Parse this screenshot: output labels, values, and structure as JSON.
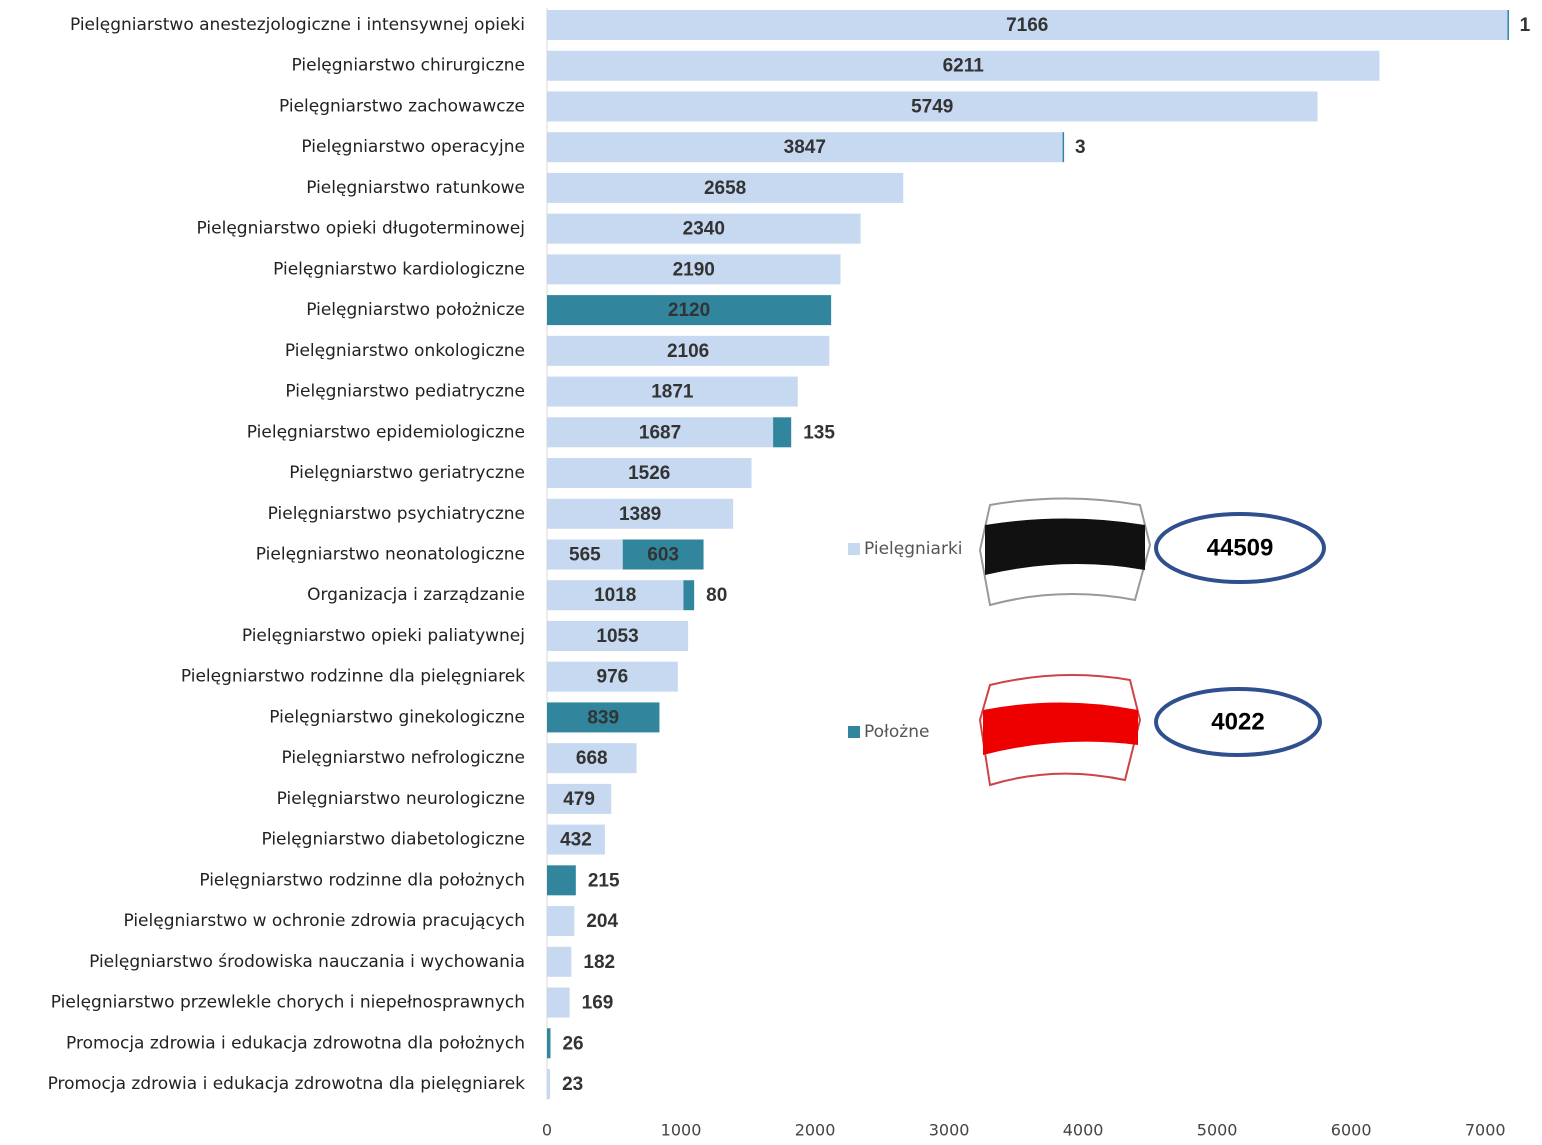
{
  "chart_data": {
    "type": "stacked-barh",
    "categories": [
      "Pielęgniarstwo anestezjologiczne i intensywnej opieki",
      "Pielęgniarstwo chirurgiczne",
      "Pielęgniarstwo zachowawcze",
      "Pielęgniarstwo operacyjne",
      "Pielęgniarstwo ratunkowe",
      "Pielęgniarstwo opieki długoterminowej",
      "Pielęgniarstwo kardiologiczne",
      "Pielęgniarstwo położnicze",
      "Pielęgniarstwo onkologiczne",
      "Pielęgniarstwo pediatryczne",
      "Pielęgniarstwo epidemiologiczne",
      "Pielęgniarstwo geriatryczne",
      "Pielęgniarstwo psychiatryczne",
      "Pielęgniarstwo neonatologiczne",
      "Organizacja i zarządzanie",
      "Pielęgniarstwo opieki paliatywnej",
      "Pielęgniarstwo rodzinne dla pielęgniarek",
      "Pielęgniarstwo ginekologiczne",
      "Pielęgniarstwo nefrologiczne",
      "Pielęgniarstwo neurologiczne",
      "Pielęgniarstwo diabetologiczne",
      "Pielęgniarstwo rodzinne dla położnych",
      "Pielęgniarstwo w ochronie zdrowia pracujących",
      "Pielęgniarstwo środowiska nauczania i wychowania",
      "Pielęgniarstwo przewlekle chorych i niepełnosprawnych",
      "Promocja zdrowia i edukacja zdrowotna dla położnych",
      "Promocja zdrowia i edukacja zdrowotna dla pielęgniarek"
    ],
    "series": [
      {
        "name": "Pielęgniarki",
        "color": "#c6d9f1",
        "total": 44509,
        "values": [
          7166,
          6211,
          5749,
          3847,
          2658,
          2340,
          2190,
          null,
          2106,
          1871,
          1687,
          1526,
          1389,
          565,
          1018,
          1053,
          976,
          null,
          668,
          479,
          432,
          null,
          204,
          182,
          169,
          null,
          23
        ]
      },
      {
        "name": "Położne",
        "color": "#31859c",
        "total": 4022,
        "values": [
          1,
          null,
          null,
          3,
          null,
          null,
          null,
          2120,
          null,
          null,
          135,
          null,
          null,
          603,
          80,
          null,
          null,
          839,
          null,
          null,
          null,
          215,
          null,
          null,
          null,
          26,
          null
        ]
      }
    ],
    "xlim": [
      0,
      7200
    ],
    "xticks": [
      0,
      1000,
      2000,
      3000,
      4000,
      5000,
      6000,
      7000
    ]
  }
}
